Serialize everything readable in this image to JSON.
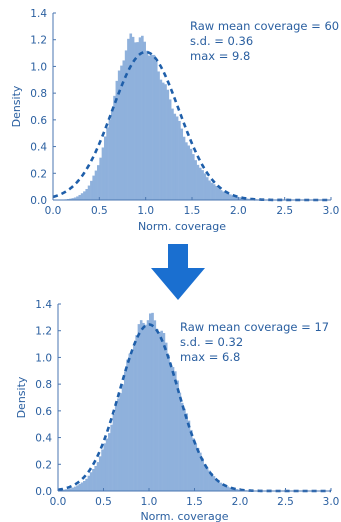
{
  "chart_data": [
    {
      "type": "bar",
      "subtype": "histogram-with-fitted-curve",
      "xlabel": "Norm. coverage",
      "ylabel": "Density",
      "xlim": [
        0,
        3
      ],
      "ylim": [
        0,
        1.4
      ],
      "xticks": [
        "0.0",
        "0.5",
        "1.0",
        "1.5",
        "2.0",
        "2.5",
        "3.0"
      ],
      "yticks": [
        "0.0",
        "0.2",
        "0.4",
        "0.6",
        "0.8",
        "1.0",
        "1.2",
        "1.4"
      ],
      "annotations": [
        "Raw mean coverage = 60",
        "s.d. = 0.36",
        "max = 9.8"
      ],
      "hist_color": "#8fb1dc",
      "curve_color": "#1f5faa",
      "histogram": {
        "mode": 0.87,
        "left_sd": 0.22,
        "right_sd": 0.4,
        "peak": 1.22
      },
      "fitted_curve": {
        "mean": 1.0,
        "sd": 0.36,
        "style": "dashed"
      }
    },
    {
      "type": "bar",
      "subtype": "histogram-with-fitted-curve",
      "xlabel": "Norm. coverage",
      "ylabel": "Density",
      "xlim": [
        0,
        3
      ],
      "ylim": [
        0,
        1.4
      ],
      "xticks": [
        "0.0",
        "0.5",
        "1.0",
        "1.5",
        "2.0",
        "2.5",
        "3.0"
      ],
      "yticks": [
        "0.0",
        "0.2",
        "0.4",
        "0.6",
        "0.8",
        "1.0",
        "1.2",
        "1.4"
      ],
      "annotations": [
        "Raw mean coverage = 17",
        "s.d. = 0.32",
        "max = 6.8"
      ],
      "hist_color": "#8fb1dc",
      "curve_color": "#1f5faa",
      "histogram": {
        "mode": 1.0,
        "left_sd": 0.3,
        "right_sd": 0.32,
        "peak": 1.3
      },
      "fitted_curve": {
        "mean": 1.0,
        "sd": 0.32,
        "style": "dashed"
      }
    }
  ],
  "arrow": {
    "icon": "down-arrow-icon",
    "color": "#1a6fd0"
  }
}
